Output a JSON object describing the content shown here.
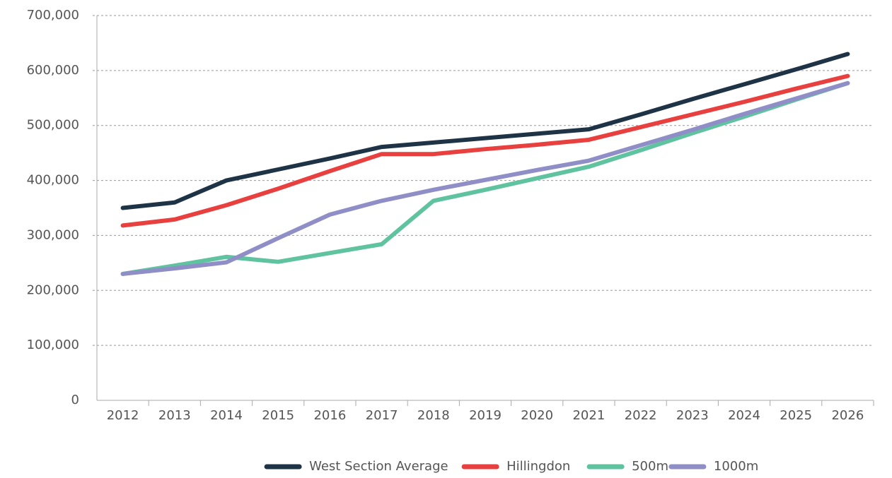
{
  "chart_data": {
    "type": "line",
    "categories": [
      "2012",
      "2013",
      "2014",
      "2015",
      "2016",
      "2017",
      "2018",
      "2019",
      "2020",
      "2021",
      "2022",
      "2023",
      "2024",
      "2025",
      "2026"
    ],
    "series": [
      {
        "name": "West Section Average",
        "color": "#1e3446",
        "values": [
          350000,
          360000,
          400000,
          420000,
          440000,
          461000,
          469000,
          477000,
          485000,
          493000,
          520000,
          548000,
          575000,
          602000,
          630000
        ]
      },
      {
        "name": "Hillingdon",
        "color": "#e8403f",
        "values": [
          318000,
          329000,
          355000,
          385000,
          417000,
          448000,
          448000,
          457000,
          465000,
          474000,
          497000,
          520000,
          543000,
          567000,
          590000
        ]
      },
      {
        "name": "500m",
        "color": "#5fc3a0",
        "values": [
          230000,
          245000,
          261000,
          252000,
          268000,
          284000,
          363000,
          383000,
          404000,
          425000,
          455000,
          486000,
          516000,
          547000,
          577000
        ]
      },
      {
        "name": "1000m",
        "color": "#8f8ec6",
        "values": [
          230000,
          240000,
          251000,
          295000,
          338000,
          363000,
          383000,
          401000,
          419000,
          436000,
          464000,
          492000,
          521000,
          549000,
          577000
        ]
      }
    ],
    "ylim": [
      0,
      700000
    ],
    "yticks": [
      0,
      {
        "value": 100000,
        "label": "100,000"
      },
      {
        "value": 200000,
        "label": "200,000"
      },
      {
        "value": 300000,
        "label": "300,000"
      },
      {
        "value": 400000,
        "label": "400,000"
      },
      {
        "value": 500000,
        "label": "500,000"
      },
      {
        "value": 600000,
        "label": "600,000"
      },
      {
        "value": 700000,
        "label": "700,000"
      }
    ],
    "grid": true,
    "legend": "bottom"
  }
}
